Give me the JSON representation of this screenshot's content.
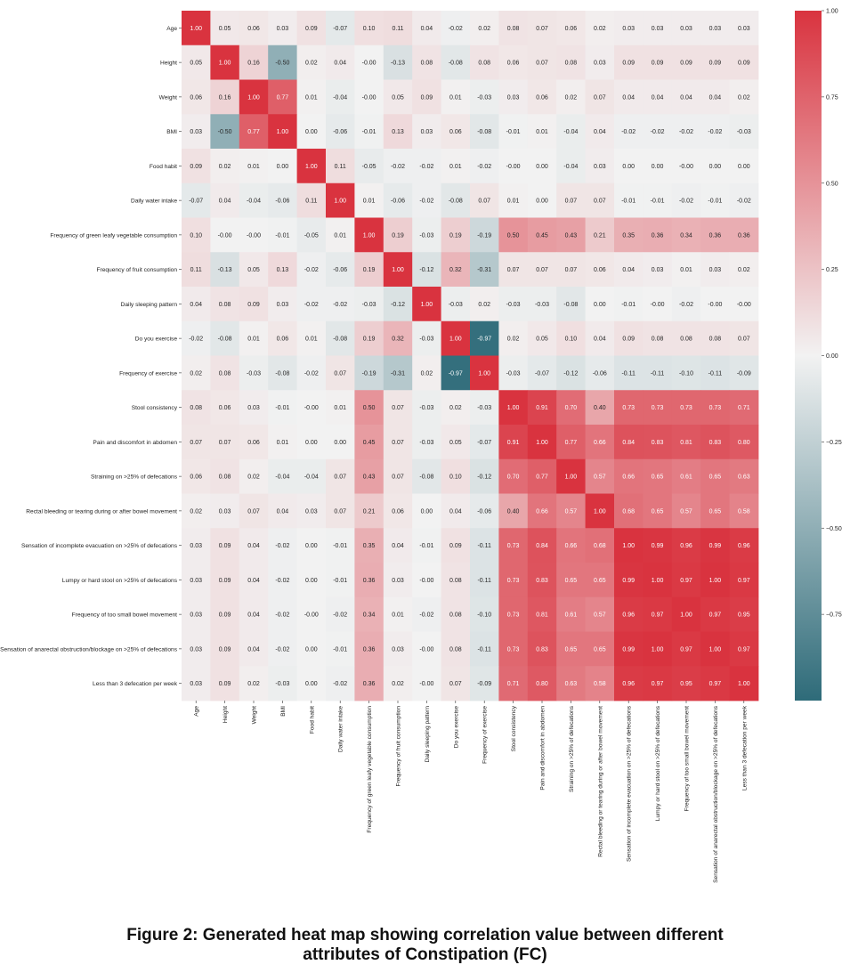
{
  "caption": {
    "line1": "Figure 2: Generated heat map showing correlation value between different",
    "line2": "attributes of Constipation (FC)"
  },
  "chart_data": {
    "type": "heatmap",
    "title": "",
    "xlabel": "",
    "ylabel": "",
    "vmin": -1.0,
    "vmax": 1.0,
    "colormap": {
      "low": "#2e6b79",
      "mid": "#f2f2f2",
      "high": "#d9333f"
    },
    "colorbar_ticks": [
      {
        "value": 1.0,
        "label": "1.00"
      },
      {
        "value": 0.75,
        "label": "0.75"
      },
      {
        "value": 0.5,
        "label": "0.50"
      },
      {
        "value": 0.25,
        "label": "0.25"
      },
      {
        "value": 0.0,
        "label": "0.00"
      },
      {
        "value": -0.25,
        "label": "−0.25"
      },
      {
        "value": -0.5,
        "label": "−0.50"
      },
      {
        "value": -0.75,
        "label": "−0.75"
      }
    ],
    "labels": [
      "Age",
      "Height",
      "Weight",
      "BMI",
      "Food habit",
      "Daily water intake",
      "Frequency of green leafy vegetable consumption",
      "Frequency of fruit consumption",
      "Daily sleeping pattern",
      "Do you exercise",
      "Frequency of exercise",
      "Stool consistency",
      "Pain and discomfort in abdomen",
      "Straining on >25% of defecations",
      "Rectal bleeding or tearing during or after bowel movement",
      "Sensation of incomplete evacuation on >25% of defecations",
      "Lumpy or hard stool on >25% of defecations",
      "Frequency of too small bowel movement",
      "Sensation of anarectal obstruction/blockage on >25% of defecations",
      "Less than 3 defecation per week"
    ],
    "matrix": [
      [
        1.0,
        0.05,
        0.06,
        0.03,
        0.09,
        -0.07,
        0.1,
        0.11,
        0.04,
        -0.02,
        0.02,
        0.08,
        0.07,
        0.06,
        0.02,
        0.03,
        0.03,
        0.03,
        0.03,
        0.03
      ],
      [
        0.05,
        1.0,
        0.16,
        -0.5,
        0.02,
        0.04,
        -0.0,
        -0.13,
        0.08,
        -0.08,
        0.08,
        0.06,
        0.07,
        0.08,
        0.03,
        0.09,
        0.09,
        0.09,
        0.09,
        0.09
      ],
      [
        0.06,
        0.16,
        1.0,
        0.77,
        0.01,
        -0.04,
        -0.0,
        0.05,
        0.09,
        0.01,
        -0.03,
        0.03,
        0.06,
        0.02,
        0.07,
        0.04,
        0.04,
        0.04,
        0.04,
        0.02
      ],
      [
        0.03,
        -0.5,
        0.77,
        1.0,
        0.0,
        -0.06,
        -0.01,
        0.13,
        0.03,
        0.06,
        -0.08,
        -0.01,
        0.01,
        -0.04,
        0.04,
        -0.02,
        -0.02,
        -0.02,
        -0.02,
        -0.03
      ],
      [
        0.09,
        0.02,
        0.01,
        0.0,
        1.0,
        0.11,
        -0.05,
        -0.02,
        -0.02,
        0.01,
        -0.02,
        -0.0,
        0.0,
        -0.04,
        0.03,
        0.0,
        0.0,
        -0.0,
        0.0,
        0.0
      ],
      [
        -0.07,
        0.04,
        -0.04,
        -0.06,
        0.11,
        1.0,
        0.01,
        -0.06,
        -0.02,
        -0.08,
        0.07,
        0.01,
        0.0,
        0.07,
        0.07,
        -0.01,
        -0.01,
        -0.02,
        -0.01,
        -0.02
      ],
      [
        0.1,
        -0.0,
        -0.0,
        -0.01,
        -0.05,
        0.01,
        1.0,
        0.19,
        -0.03,
        0.19,
        -0.19,
        0.5,
        0.45,
        0.43,
        0.21,
        0.35,
        0.36,
        0.34,
        0.36,
        0.36
      ],
      [
        0.11,
        -0.13,
        0.05,
        0.13,
        -0.02,
        -0.06,
        0.19,
        1.0,
        -0.12,
        0.32,
        -0.31,
        0.07,
        0.07,
        0.07,
        0.06,
        0.04,
        0.03,
        0.01,
        0.03,
        0.02
      ],
      [
        0.04,
        0.08,
        0.09,
        0.03,
        -0.02,
        -0.02,
        -0.03,
        -0.12,
        1.0,
        -0.03,
        0.02,
        -0.03,
        -0.03,
        -0.08,
        0.0,
        -0.01,
        -0.0,
        -0.02,
        -0.0,
        -0.0
      ],
      [
        -0.02,
        -0.08,
        0.01,
        0.06,
        0.01,
        -0.08,
        0.19,
        0.32,
        -0.03,
        1.0,
        -0.97,
        0.02,
        0.05,
        0.1,
        0.04,
        0.09,
        0.08,
        0.08,
        0.08,
        0.07
      ],
      [
        0.02,
        0.08,
        -0.03,
        -0.08,
        -0.02,
        0.07,
        -0.19,
        -0.31,
        0.02,
        -0.97,
        1.0,
        -0.03,
        -0.07,
        -0.12,
        -0.06,
        -0.11,
        -0.11,
        -0.1,
        -0.11,
        -0.09
      ],
      [
        0.08,
        0.06,
        0.03,
        -0.01,
        -0.0,
        0.01,
        0.5,
        0.07,
        -0.03,
        0.02,
        -0.03,
        1.0,
        0.91,
        0.7,
        0.4,
        0.73,
        0.73,
        0.73,
        0.73,
        0.71
      ],
      [
        0.07,
        0.07,
        0.06,
        0.01,
        0.0,
        0.0,
        0.45,
        0.07,
        -0.03,
        0.05,
        -0.07,
        0.91,
        1.0,
        0.77,
        0.66,
        0.84,
        0.83,
        0.81,
        0.83,
        0.8
      ],
      [
        0.06,
        0.08,
        0.02,
        -0.04,
        -0.04,
        0.07,
        0.43,
        0.07,
        -0.08,
        0.1,
        -0.12,
        0.7,
        0.77,
        1.0,
        0.57,
        0.66,
        0.65,
        0.61,
        0.65,
        0.63
      ],
      [
        0.02,
        0.03,
        0.07,
        0.04,
        0.03,
        0.07,
        0.21,
        0.06,
        0.0,
        0.04,
        -0.06,
        0.4,
        0.66,
        0.57,
        1.0,
        0.68,
        0.65,
        0.57,
        0.65,
        0.58
      ],
      [
        0.03,
        0.09,
        0.04,
        -0.02,
        0.0,
        -0.01,
        0.35,
        0.04,
        -0.01,
        0.09,
        -0.11,
        0.73,
        0.84,
        0.66,
        0.68,
        1.0,
        0.99,
        0.96,
        0.99,
        0.96
      ],
      [
        0.03,
        0.09,
        0.04,
        -0.02,
        0.0,
        -0.01,
        0.36,
        0.03,
        -0.0,
        0.08,
        -0.11,
        0.73,
        0.83,
        0.65,
        0.65,
        0.99,
        1.0,
        0.97,
        1.0,
        0.97
      ],
      [
        0.03,
        0.09,
        0.04,
        -0.02,
        -0.0,
        -0.02,
        0.34,
        0.01,
        -0.02,
        0.08,
        -0.1,
        0.73,
        0.81,
        0.61,
        0.57,
        0.96,
        0.97,
        1.0,
        0.97,
        0.95
      ],
      [
        0.03,
        0.09,
        0.04,
        -0.02,
        0.0,
        -0.01,
        0.36,
        0.03,
        -0.0,
        0.08,
        -0.11,
        0.73,
        0.83,
        0.65,
        0.65,
        0.99,
        1.0,
        0.97,
        1.0,
        0.97
      ],
      [
        0.03,
        0.09,
        0.02,
        -0.03,
        0.0,
        -0.02,
        0.36,
        0.02,
        -0.0,
        0.07,
        -0.09,
        0.71,
        0.8,
        0.63,
        0.58,
        0.96,
        0.97,
        0.95,
        0.97,
        1.0
      ]
    ]
  }
}
